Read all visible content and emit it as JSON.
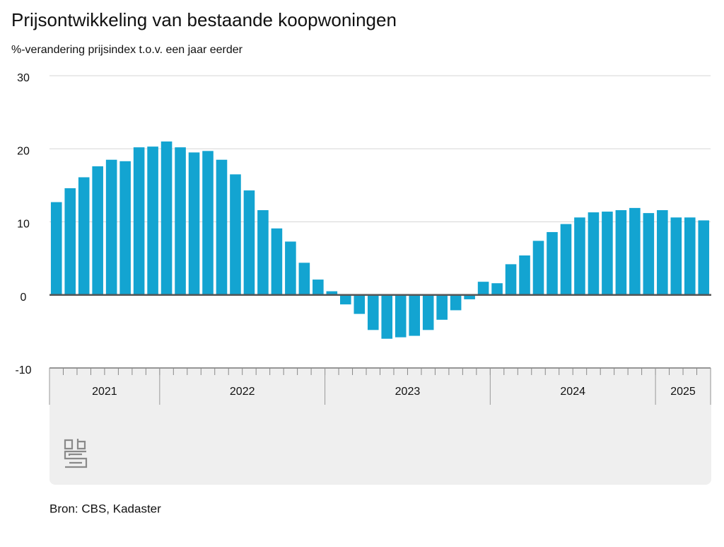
{
  "chart_data": {
    "type": "bar",
    "title": "Prijsontwikkeling van bestaande koopwoningen",
    "subtitle": "%-verandering prijsindex t.o.v. een jaar eerder",
    "source": "Bron: CBS, Kadaster",
    "categories": [
      null,
      null,
      null,
      null,
      null,
      null,
      null,
      null,
      null,
      null,
      null,
      null,
      null,
      null,
      null,
      null,
      null,
      null,
      null,
      null,
      null,
      null,
      null,
      null,
      null,
      null,
      null,
      null,
      null,
      null,
      null,
      null,
      null,
      null,
      null,
      null,
      null,
      null,
      null,
      null,
      null,
      null,
      null,
      null,
      null,
      null,
      null,
      null
    ],
    "x_groups": [
      {
        "label": "2021",
        "count": 8
      },
      {
        "label": "2022",
        "count": 12
      },
      {
        "label": "2023",
        "count": 12
      },
      {
        "label": "2024",
        "count": 12
      },
      {
        "label": "2025",
        "count": 4
      }
    ],
    "values": [
      12.7,
      14.6,
      16.1,
      17.6,
      18.5,
      18.3,
      20.2,
      20.3,
      21.0,
      20.2,
      19.5,
      19.7,
      18.5,
      16.5,
      14.3,
      11.6,
      9.1,
      7.3,
      4.4,
      2.1,
      0.5,
      -1.3,
      -2.6,
      -4.8,
      -6.0,
      -5.8,
      -5.6,
      -4.8,
      -3.4,
      -2.1,
      -0.6,
      1.8,
      1.6,
      4.2,
      5.4,
      7.4,
      8.6,
      9.7,
      10.6,
      11.3,
      11.4,
      11.6,
      11.9,
      11.2,
      11.6,
      10.6,
      10.6,
      10.2
    ],
    "color": "#13a4d1",
    "ylim": [
      -10,
      30
    ],
    "yticks": [
      -10,
      0,
      10,
      20,
      30
    ],
    "grid": true
  }
}
